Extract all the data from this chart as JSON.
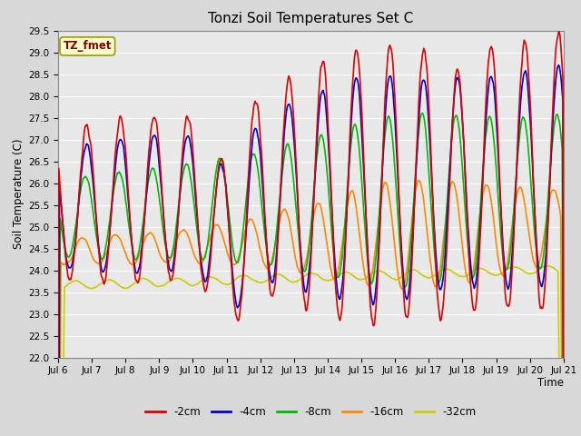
{
  "title": "Tonzi Soil Temperatures Set C",
  "xlabel": "Time",
  "ylabel": "Soil Temperature (C)",
  "ylim": [
    22.0,
    29.5
  ],
  "yticks": [
    22.0,
    22.5,
    23.0,
    23.5,
    24.0,
    24.5,
    25.0,
    25.5,
    26.0,
    26.5,
    27.0,
    27.5,
    28.0,
    28.5,
    29.0,
    29.5
  ],
  "xtick_labels": [
    "Jul 6",
    "Jul 7",
    "Jul 8",
    "Jul 9",
    "Jul 10",
    "Jul 11",
    "Jul 12",
    "Jul 13",
    "Jul 14",
    "Jul 15",
    "Jul 16",
    "Jul 17",
    "Jul 18",
    "Jul 19",
    "Jul 20",
    "Jul 21"
  ],
  "series_names": [
    "-2cm",
    "-4cm",
    "-8cm",
    "-16cm",
    "-32cm"
  ],
  "series_colors": [
    "#dd0000",
    "#0000cc",
    "#00bb00",
    "#ff8800",
    "#cccc00"
  ],
  "annotation_text": "TZ_fmet",
  "annotation_color": "#880000",
  "annotation_bg": "#ffffcc",
  "annotation_border": "#999900",
  "fig_bg": "#d8d8d8",
  "plot_bg": "#e8e8e8",
  "n_points": 720,
  "days": 15,
  "lw": 1.2
}
